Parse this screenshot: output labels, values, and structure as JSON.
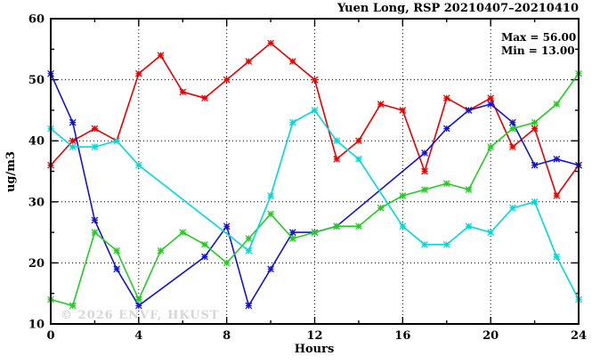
{
  "chart_data": {
    "type": "line",
    "title": "Yuen Long, RSP 20210407–20210410",
    "annotations": {
      "max": "Max = 56.00",
      "min": "Min = 13.00"
    },
    "xlabel": "Hours",
    "ylabel": "ug/m3",
    "watermark": "© 2026 ENVF, HKUST",
    "xlim": [
      0,
      24
    ],
    "ylim": [
      10,
      60
    ],
    "xticks_major": [
      0,
      4,
      8,
      12,
      16,
      20,
      24
    ],
    "xticks_minor": [
      2,
      6,
      10,
      14,
      18,
      22
    ],
    "yticks_major": [
      10,
      20,
      30,
      40,
      50,
      60
    ],
    "yticks_minor": [
      15,
      25,
      35,
      45,
      55
    ],
    "grid_x": [
      4,
      8,
      12,
      16,
      20
    ],
    "grid_y": [
      20,
      30,
      40,
      50
    ],
    "x": [
      0,
      1,
      2,
      3,
      4,
      5,
      6,
      7,
      8,
      9,
      10,
      11,
      12,
      13,
      14,
      15,
      16,
      17,
      18,
      19,
      20,
      21,
      22,
      23,
      24
    ],
    "series": [
      {
        "name": "red",
        "color": "#e60000",
        "values": [
          36,
          40,
          42,
          40,
          51,
          54,
          48,
          47,
          50,
          53,
          56,
          53,
          50,
          37,
          40,
          46,
          45,
          35,
          47,
          45,
          47,
          39,
          42,
          31,
          36
        ]
      },
      {
        "name": "blue",
        "color": "#1414cf",
        "values": [
          51,
          43,
          27,
          19,
          13,
          null,
          null,
          21,
          26,
          13,
          19,
          25,
          25,
          26,
          null,
          null,
          null,
          38,
          42,
          45,
          46,
          43,
          36,
          37,
          36
        ]
      },
      {
        "name": "green",
        "color": "#22cc22",
        "values": [
          14,
          13,
          25,
          22,
          14,
          22,
          25,
          23,
          20,
          24,
          28,
          24,
          25,
          26,
          26,
          29,
          31,
          32,
          33,
          32,
          39,
          42,
          43,
          46,
          51
        ]
      },
      {
        "name": "cyan",
        "color": "#00d9d9",
        "values": [
          42,
          39,
          39,
          40,
          36,
          null,
          null,
          null,
          null,
          22,
          31,
          43,
          45,
          40,
          37,
          null,
          26,
          23,
          23,
          26,
          25,
          29,
          30,
          21,
          14
        ]
      }
    ],
    "axis_color": "#000000",
    "grid_style": "dotted"
  }
}
